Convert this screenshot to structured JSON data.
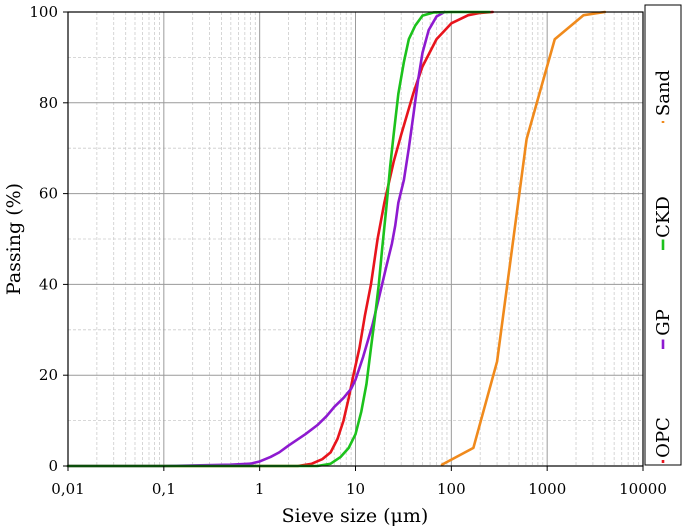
{
  "chart_data": {
    "type": "line",
    "title": "",
    "xlabel": "Sieve size (μm)",
    "ylabel": "Passing (%)",
    "x_scale": "log",
    "xlim": [
      0.01,
      10000
    ],
    "ylim": [
      0,
      100
    ],
    "x_ticks": [
      0.01,
      0.1,
      1,
      10,
      100,
      1000,
      10000
    ],
    "x_tick_labels": [
      "0,01",
      "0,1",
      "1",
      "10",
      "100",
      "1000",
      "10000"
    ],
    "y_ticks": [
      0,
      20,
      40,
      60,
      80,
      100
    ],
    "y_tick_labels": [
      "0",
      "20",
      "40",
      "60",
      "80",
      "100"
    ],
    "grid": true,
    "legend_position": "right (vertical)",
    "series": [
      {
        "name": "OPC",
        "color": "#e8141c",
        "points": [
          [
            0.01,
            0
          ],
          [
            1,
            0
          ],
          [
            2.5,
            0
          ],
          [
            3.5,
            0.5
          ],
          [
            4.5,
            1.5
          ],
          [
            5.5,
            3
          ],
          [
            6.5,
            6
          ],
          [
            7.5,
            10
          ],
          [
            8.5,
            15
          ],
          [
            9.5,
            20
          ],
          [
            11,
            26
          ],
          [
            12.5,
            33
          ],
          [
            14.5,
            40
          ],
          [
            17,
            50
          ],
          [
            20,
            58
          ],
          [
            25,
            67
          ],
          [
            30,
            73
          ],
          [
            40,
            82
          ],
          [
            50,
            88
          ],
          [
            70,
            94
          ],
          [
            100,
            97.5
          ],
          [
            150,
            99.3
          ],
          [
            200,
            99.8
          ],
          [
            270,
            100
          ]
        ]
      },
      {
        "name": "GP",
        "color": "#8e1ad0",
        "points": [
          [
            0.01,
            0
          ],
          [
            0.1,
            0
          ],
          [
            0.5,
            0.3
          ],
          [
            0.8,
            0.5
          ],
          [
            1,
            1
          ],
          [
            1.3,
            2
          ],
          [
            1.6,
            3
          ],
          [
            2,
            4.5
          ],
          [
            3,
            7
          ],
          [
            4,
            9
          ],
          [
            5,
            11
          ],
          [
            6,
            13
          ],
          [
            7.5,
            15
          ],
          [
            9,
            17
          ],
          [
            10,
            19
          ],
          [
            12,
            24
          ],
          [
            15,
            31
          ],
          [
            18,
            38
          ],
          [
            21,
            44
          ],
          [
            24,
            49
          ],
          [
            26,
            53
          ],
          [
            28,
            58
          ],
          [
            32,
            63
          ],
          [
            36,
            70
          ],
          [
            40,
            77
          ],
          [
            45,
            85
          ],
          [
            50,
            91
          ],
          [
            58,
            96
          ],
          [
            70,
            99
          ],
          [
            85,
            100
          ]
        ]
      },
      {
        "name": "CKD",
        "color": "#1cc21c",
        "points": [
          [
            0.01,
            0
          ],
          [
            1,
            0
          ],
          [
            4,
            0
          ],
          [
            5.5,
            0.5
          ],
          [
            7,
            2
          ],
          [
            8.5,
            4
          ],
          [
            10,
            7
          ],
          [
            11.5,
            12
          ],
          [
            13,
            18
          ],
          [
            14.5,
            26
          ],
          [
            16,
            33
          ],
          [
            17.5,
            40
          ],
          [
            19,
            48
          ],
          [
            21,
            57
          ],
          [
            23,
            66
          ],
          [
            25,
            73
          ],
          [
            28,
            82
          ],
          [
            32,
            89
          ],
          [
            36,
            94
          ],
          [
            42,
            97
          ],
          [
            50,
            99.2
          ],
          [
            65,
            99.9
          ],
          [
            100,
            100
          ],
          [
            250,
            100
          ]
        ]
      },
      {
        "name": "Sand",
        "color": "#f08a1c",
        "points": [
          [
            80,
            0.3
          ],
          [
            170,
            4
          ],
          [
            300,
            23
          ],
          [
            610,
            72
          ],
          [
            1200,
            94
          ],
          [
            2400,
            99.3
          ],
          [
            4000,
            100
          ]
        ]
      }
    ]
  }
}
